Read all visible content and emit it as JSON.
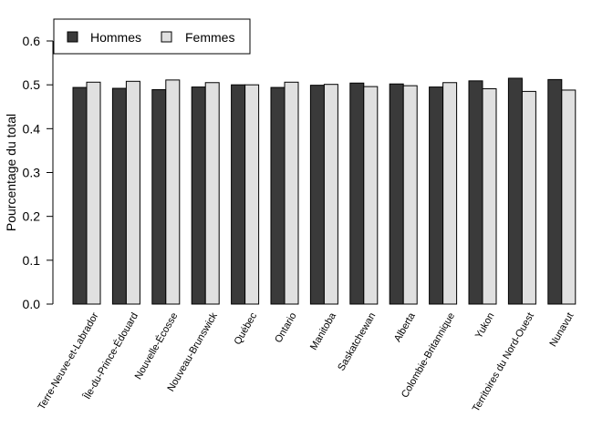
{
  "chart_data": {
    "type": "bar",
    "title": "",
    "xlabel": "",
    "ylabel": "Pourcentage du total",
    "ylim": [
      0,
      0.6
    ],
    "yticks": [
      "0.0",
      "0.1",
      "0.2",
      "0.3",
      "0.4",
      "0.5",
      "0.6"
    ],
    "grid": false,
    "legend_position": "top-left",
    "categories": [
      "Terre-Neuve-et-Labrador",
      "Île-du-Prince-Édouard",
      "Nouvelle-Écosse",
      "Nouveau-Brunswick",
      "Québec",
      "Ontario",
      "Manitoba",
      "Saskatchewan",
      "Alberta",
      "Colombie-Britannique",
      "Yukon",
      "Territoires du Nord-Ouest",
      "Nunavut"
    ],
    "series": [
      {
        "name": "Hommes",
        "color": "#3a3a3a",
        "values": [
          0.494,
          0.492,
          0.489,
          0.495,
          0.5,
          0.494,
          0.499,
          0.504,
          0.502,
          0.495,
          0.509,
          0.515,
          0.512
        ]
      },
      {
        "name": "Femmes",
        "color": "#e0e0e0",
        "values": [
          0.506,
          0.508,
          0.511,
          0.505,
          0.5,
          0.506,
          0.501,
          0.496,
          0.498,
          0.505,
          0.491,
          0.485,
          0.488
        ]
      }
    ]
  }
}
